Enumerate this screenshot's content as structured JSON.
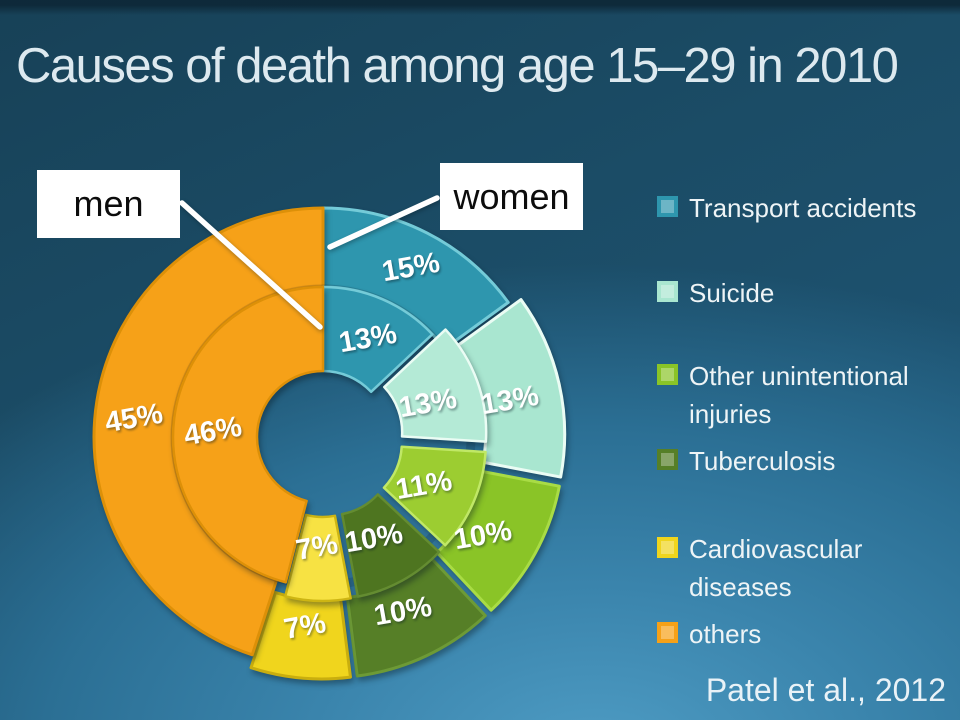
{
  "chart_data": {
    "type": "pie",
    "subtype": "double-ring-donut",
    "title": "Causes of death among age 15–29 in 2010",
    "citation": "Patel et al., 2012",
    "unit": "%",
    "categories": [
      "Transport accidents",
      "Suicide",
      "Other unintentional injuries",
      "Tuberculosis",
      "Cardiovascular diseases",
      "others"
    ],
    "series": [
      {
        "name": "women",
        "ring": "outer",
        "values": [
          15,
          13,
          10,
          10,
          7,
          45
        ]
      },
      {
        "name": "men",
        "ring": "inner",
        "values": [
          13,
          13,
          11,
          10,
          7,
          46
        ]
      }
    ],
    "start_angle_deg": 0,
    "direction": "clockwise",
    "legend_position": "right",
    "label_rotation_deg": -10,
    "colors": {
      "outer_slices": [
        "#2e96ae",
        "#a9e6d0",
        "#8ac427",
        "#567f27",
        "#f0d51d",
        "#f6a118"
      ],
      "inner_slices": [
        "#2e96ae",
        "#b4ead6",
        "#9ccd31",
        "#4e7520",
        "#f7e243",
        "#f6a118"
      ],
      "label_text": "#ffffff",
      "title_text": "#dde9ef",
      "legend_text": "#eef4f6",
      "background_top": "#174157",
      "background_bottom": "#4e9cc4",
      "callout_bg": "#ffffff",
      "callout_text": "#0c0c0c"
    }
  },
  "callouts": {
    "men": "men",
    "women": "women"
  }
}
